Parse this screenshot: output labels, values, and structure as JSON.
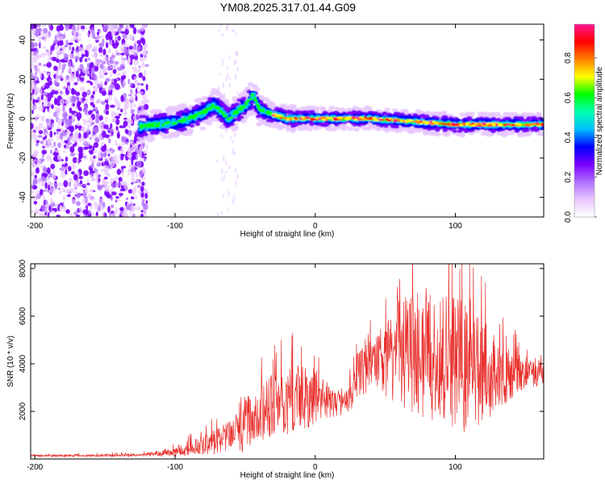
{
  "title": "YM08.2025.317.01.44.G09",
  "chart_data": [
    {
      "type": "heatmap",
      "xlabel": "Height of straight line (km)",
      "ylabel": "Frequency (Hz)",
      "xlim": [
        -203,
        163
      ],
      "ylim": [
        -50,
        48
      ],
      "xticks": [
        -200,
        -100,
        0,
        100
      ],
      "yticks": [
        -40,
        -20,
        0,
        20,
        40
      ],
      "colorbar": {
        "label": "Normalized spectral amplitude",
        "range": [
          0,
          0.97
        ],
        "ticks": [
          "0.0",
          "0.2",
          "0.4",
          "0.6",
          "0.8"
        ],
        "colors": [
          "#ffffff",
          "#e8c8ff",
          "#b070ff",
          "#7a00ff",
          "#0000ff",
          "#00bfff",
          "#00ffb0",
          "#00ff00",
          "#ffff00",
          "#ff8000",
          "#ff0000",
          "#ff1493"
        ]
      },
      "ridge": {
        "x": [
          -125,
          -110,
          -100,
          -90,
          -80,
          -72,
          -68,
          -62,
          -55,
          -48,
          -44,
          -40,
          -30,
          -20,
          0,
          20,
          40,
          60,
          80,
          100,
          120,
          140,
          160
        ],
        "frequency": [
          -4,
          -3,
          -2,
          0,
          3,
          7,
          4,
          0,
          4,
          8,
          12,
          5,
          2,
          0,
          0,
          0,
          0,
          -1,
          -2,
          -3,
          -3,
          -3,
          -3
        ]
      },
      "noise_region_x": [
        -203,
        -120
      ],
      "tail_fragment_x": [
        -70,
        -55
      ]
    },
    {
      "type": "line",
      "xlabel": "Height of straight line (km)",
      "ylabel": "SNR (10 * v/v)",
      "xlim": [
        -203,
        163
      ],
      "ylim": [
        0,
        8200
      ],
      "xticks": [
        -200,
        -100,
        0,
        100
      ],
      "yticks": [
        2000,
        4000,
        6000,
        8000
      ],
      "series": [
        {
          "name": "SNR",
          "color": "#e8302c",
          "envelope": {
            "x": [
              -203,
              -150,
              -120,
              -100,
              -90,
              -75,
              -60,
              -50,
              -40,
              -30,
              -20,
              -10,
              0,
              10,
              20,
              25,
              30,
              40,
              50,
              60,
              70,
              80,
              90,
              100,
              110,
              120,
              130,
              140,
              150,
              163
            ],
            "base": [
              130,
              140,
              170,
              260,
              420,
              600,
              850,
              1300,
              1800,
              2100,
              2300,
              2400,
              2500,
              2300,
              2200,
              2500,
              3400,
              3800,
              4000,
              4300,
              4200,
              4100,
              4000,
              3700,
              3500,
              3300,
              3300,
              3400,
              3500,
              3600
            ],
            "spread": [
              60,
              70,
              90,
              220,
              380,
              600,
              900,
              1400,
              1500,
              1700,
              1800,
              1900,
              1600,
              800,
              500,
              900,
              1200,
              1400,
              2000,
              2800,
              3200,
              3400,
              3500,
              3600,
              3300,
              2800,
              1700,
              1300,
              900,
              700
            ]
          }
        }
      ]
    }
  ]
}
